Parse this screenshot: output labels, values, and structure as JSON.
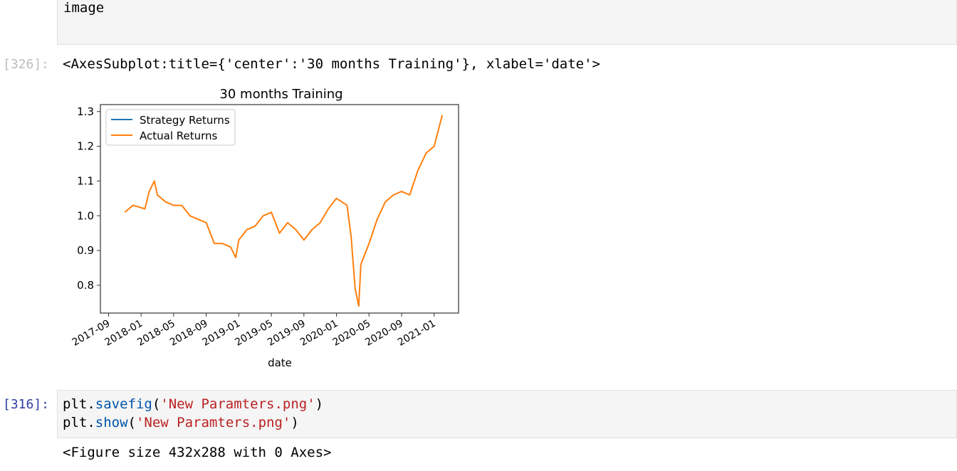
{
  "cells": {
    "markdown_text": "image",
    "out326": {
      "prompt": "[326]:",
      "repr": "<AxesSubplot:title={'center':'30 months Training'}, xlabel='date'>"
    },
    "in316": {
      "prompt": "[316]:",
      "line1": {
        "obj": "plt.",
        "fn": "savefig",
        "open": "(",
        "arg": "'New Paramters.png'",
        "close": ")"
      },
      "line2": {
        "obj": "plt.",
        "fn": "show",
        "open": "(",
        "arg": "'New Paramters.png'",
        "close": ")"
      }
    },
    "out316": {
      "text": "<Figure size 432x288 with 0 Axes>"
    }
  },
  "colors": {
    "prompt_out": "#d84315",
    "prompt_in": "#303f9f",
    "series_strategy": "#1f77b4",
    "series_actual": "#ff7f0e"
  },
  "chart_data": {
    "type": "line",
    "title": "30 months Training",
    "xlabel": "date",
    "ylabel": "",
    "x_ticks": [
      "2017-09",
      "2018-01",
      "2018-05",
      "2018-09",
      "2019-01",
      "2019-05",
      "2019-09",
      "2020-01",
      "2020-05",
      "2020-09",
      "2021-01"
    ],
    "y_ticks": [
      "0.8",
      "0.9",
      "1.0",
      "1.1",
      "1.2",
      "1.3"
    ],
    "xlim": [
      "2017-08",
      "2021-04"
    ],
    "ylim": [
      0.72,
      1.32
    ],
    "legend": "top-left",
    "series": [
      {
        "name": "Strategy Returns",
        "x": [],
        "values": []
      },
      {
        "name": "Actual Returns",
        "x": [
          "2017-11",
          "2017-12",
          "2018-01-15",
          "2018-02",
          "2018-02-20",
          "2018-03",
          "2018-04",
          "2018-05",
          "2018-06",
          "2018-07",
          "2018-08",
          "2018-09",
          "2018-10",
          "2018-11",
          "2018-12",
          "2018-12-20",
          "2019-01",
          "2019-02",
          "2019-03",
          "2019-04",
          "2019-05",
          "2019-06",
          "2019-07",
          "2019-08",
          "2019-09",
          "2019-10",
          "2019-11",
          "2019-12",
          "2020-01",
          "2020-02-10",
          "2020-02-25",
          "2020-03-10",
          "2020-03-23",
          "2020-04",
          "2020-05",
          "2020-06",
          "2020-07",
          "2020-08",
          "2020-09",
          "2020-10",
          "2020-11",
          "2020-12",
          "2021-01",
          "2021-02"
        ],
        "values": [
          1.01,
          1.03,
          1.02,
          1.07,
          1.1,
          1.06,
          1.04,
          1.03,
          1.03,
          1.0,
          0.99,
          0.98,
          0.92,
          0.92,
          0.91,
          0.88,
          0.93,
          0.96,
          0.97,
          1.0,
          1.01,
          0.95,
          0.98,
          0.96,
          0.93,
          0.96,
          0.98,
          1.02,
          1.05,
          1.03,
          0.94,
          0.79,
          0.74,
          0.86,
          0.92,
          0.99,
          1.04,
          1.06,
          1.07,
          1.06,
          1.13,
          1.18,
          1.2,
          1.29
        ]
      }
    ]
  }
}
